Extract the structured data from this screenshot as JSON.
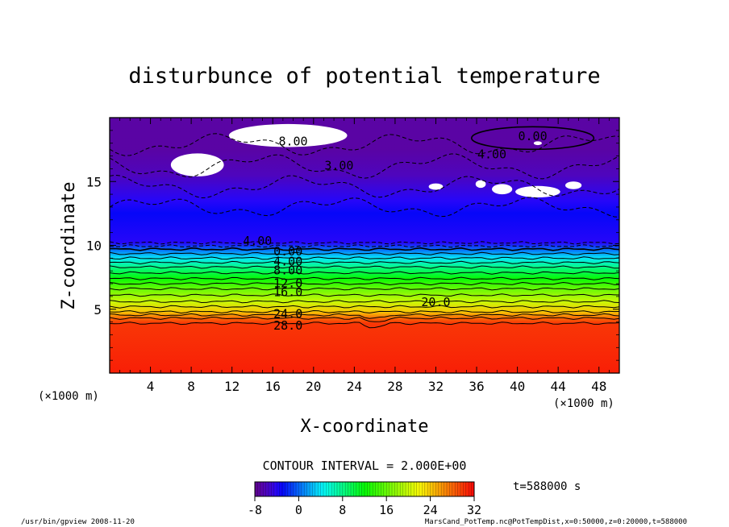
{
  "chart_data": {
    "type": "heatmap",
    "title": "disturbunce of potential temperature",
    "xlabel": "X-coordinate",
    "ylabel": "Z-coordinate",
    "x_unit": "(×1000 m)",
    "y_unit": "(×1000 m)",
    "xlim": [
      0,
      50
    ],
    "ylim": [
      0,
      20
    ],
    "x_ticks": [
      "4",
      "8",
      "12",
      "16",
      "20",
      "24",
      "28",
      "32",
      "36",
      "40",
      "44",
      "48"
    ],
    "y_ticks": [
      "5",
      "10",
      "15"
    ],
    "contour_interval": "CONTOUR INTERVAL = 2.000E+00",
    "colorbar": {
      "range": [
        -8,
        32
      ],
      "ticks": [
        "-8",
        "0",
        "8",
        "16",
        "24",
        "32"
      ]
    },
    "time_label": "t=588000 s",
    "contour_labels": [
      {
        "text": "8.00",
        "x": 18.0,
        "z": 18.2
      },
      {
        "text": "0.00",
        "x": 41.5,
        "z": 18.6
      },
      {
        "text": "4.00",
        "x": 37.5,
        "z": 17.2
      },
      {
        "text": "3.00",
        "x": 22.5,
        "z": 16.3
      },
      {
        "text": "4.00",
        "x": 14.5,
        "z": 10.4
      },
      {
        "text": "0.00",
        "x": 17.5,
        "z": 9.6
      },
      {
        "text": "4.00",
        "x": 17.5,
        "z": 8.8
      },
      {
        "text": "8.00",
        "x": 17.5,
        "z": 8.1
      },
      {
        "text": "12.0",
        "x": 17.5,
        "z": 7.1
      },
      {
        "text": "16.0",
        "x": 17.5,
        "z": 6.4
      },
      {
        "text": "20.0",
        "x": 32.0,
        "z": 5.6
      },
      {
        "text": "24.0",
        "x": 17.5,
        "z": 4.7
      },
      {
        "text": "28.0",
        "x": 17.5,
        "z": 3.8
      }
    ],
    "vertical_profile": [
      {
        "z": 0.0,
        "value": 31
      },
      {
        "z": 3.9,
        "value": 30
      },
      {
        "z": 4.3,
        "value": 28
      },
      {
        "z": 4.8,
        "value": 24
      },
      {
        "z": 5.6,
        "value": 20
      },
      {
        "z": 6.6,
        "value": 16
      },
      {
        "z": 7.4,
        "value": 12
      },
      {
        "z": 8.3,
        "value": 8
      },
      {
        "z": 9.0,
        "value": 4
      },
      {
        "z": 9.7,
        "value": 0
      },
      {
        "z": 10.2,
        "value": -4
      },
      {
        "z": 12.5,
        "value": -3
      },
      {
        "z": 13.5,
        "value": -4
      },
      {
        "z": 15.5,
        "value": -6
      },
      {
        "z": 17.5,
        "value": -7
      },
      {
        "z": 20.0,
        "value": -7
      }
    ]
  },
  "footer": {
    "left": "/usr/bin/gpview  2008-11-20",
    "right": "MarsCand_PotTemp.nc@PotTempDist,x=0:50000,z=0:20000,t=588000"
  },
  "colors": {
    "background": "#ffffff",
    "undefined_region": "#ffffff",
    "line": "#000000"
  }
}
